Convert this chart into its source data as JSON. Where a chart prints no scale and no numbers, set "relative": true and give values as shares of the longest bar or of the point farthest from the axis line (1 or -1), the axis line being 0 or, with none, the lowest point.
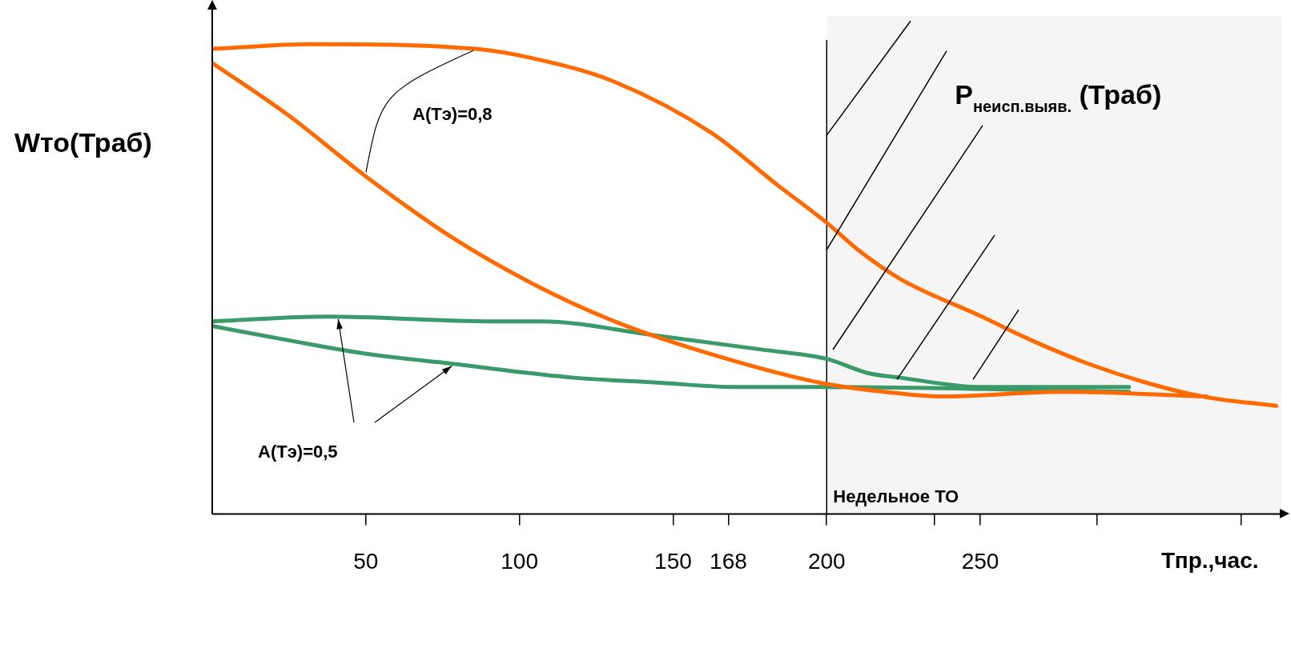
{
  "chart_data": {
    "type": "line",
    "relative": true,
    "ylabel": "Wто(Траб)",
    "xlabel": "Тпр.,час.",
    "tick_labels": "x",
    "xlim": [
      0,
      348
    ],
    "xticks": [
      50,
      100,
      150,
      168,
      200,
      {
        "value": 235,
        "label": null
      },
      250,
      {
        "value": 288,
        "label": null
      },
      {
        "value": 335,
        "label": null
      }
    ],
    "series": [
      {
        "color": "#ff6a00",
        "x": [
          0,
          32.4,
          85.6,
          104.3,
          130.9,
          162.8,
          184,
          200,
          210.6,
          224,
          250.5,
          266.5,
          285,
          303.7,
          322.3,
          346.3
        ],
        "values": [
          0.99,
          1.0,
          0.99,
          0.97,
          0.92,
          0.81,
          0.7,
          0.62,
          0.56,
          0.5,
          0.42,
          0.37,
          0.32,
          0.28,
          0.25,
          0.23
        ]
      },
      {
        "color": "#ff6a00",
        "x": [
          0,
          24.5,
          49.7,
          77.7,
          104.3,
          130.9,
          157.4,
          197.3,
          218.6,
          237.2,
          277.1,
          323.7
        ],
        "values": [
          0.96,
          0.85,
          0.72,
          0.59,
          0.49,
          0.41,
          0.35,
          0.28,
          0.26,
          0.25,
          0.26,
          0.25
        ]
      },
      {
        "color": "#3a9a6a",
        "x": [
          0,
          37.8,
          91,
          106.9,
          144.1,
          178.7,
          200,
          213.3,
          223.9,
          250.5,
          298.4
        ],
        "values": [
          0.41,
          0.42,
          0.41,
          0.41,
          0.38,
          0.35,
          0.33,
          0.3,
          0.29,
          0.27,
          0.27
        ]
      },
      {
        "color": "#3a9a6a",
        "x": [
          0,
          24.5,
          51.1,
          77.7,
          117.6,
          144.1,
          170.7,
          197.3,
          298.4
        ],
        "values": [
          0.4,
          0.37,
          0.34,
          0.32,
          0.29,
          0.28,
          0.27,
          0.27,
          0.26
        ]
      }
    ],
    "annotations": [
      "A(Тэ)=0,8",
      "A(Тэ)=0,5"
    ],
    "ref_lines": [
      {
        "axis": "x",
        "value": 200,
        "label": "Недельное ТО",
        "color": "#000000"
      }
    ],
    "bands": [
      {
        "axis": "x",
        "from": 200,
        "to": 348,
        "label": "P$_{неисп.выяв.}$ (Траб)",
        "color": "#000000"
      }
    ]
  }
}
